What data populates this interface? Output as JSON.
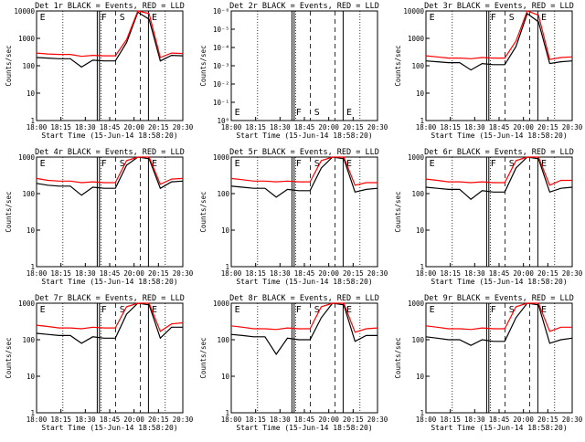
{
  "chart_data": [
    {
      "type": "line",
      "title": "Det 1r BLACK = Events, RED = LLD",
      "ylabel": "Counts/sec",
      "xlabel": "Start Time (15-Jun-14 18:58:20)",
      "x_ticks": [
        "18:00",
        "18:15",
        "18:30",
        "18:45",
        "20:00",
        "20:15",
        "20:30"
      ],
      "y_ticks": [
        "1",
        "10",
        "100",
        "1000",
        "10000"
      ],
      "y_scale": "log",
      "ylim": [
        1,
        10000
      ],
      "markers": [
        "E",
        "F",
        "S",
        "E"
      ],
      "series": [
        {
          "color": "#000000",
          "values": [
            200,
            190,
            180,
            180,
            90,
            160,
            150,
            150,
            700,
            9000,
            5000,
            150,
            240,
            230
          ]
        },
        {
          "color": "#ff0000",
          "values": [
            290,
            270,
            260,
            260,
            220,
            240,
            230,
            230,
            900,
            10000,
            8000,
            200,
            290,
            280
          ]
        }
      ]
    },
    {
      "type": "line",
      "title": "Det 2r BLACK = Events, RED = LLD",
      "ylabel": "Counts/sec",
      "xlabel": "Start Time (15-Jun-14 18:58:20)",
      "x_ticks": [
        "18:00",
        "18:15",
        "18:30",
        "18:45",
        "20:00",
        "20:15",
        "20:30"
      ],
      "y_ticks": [
        "10⁰",
        "10⁻¹",
        "10⁻²",
        "10⁻³",
        "10⁻⁴",
        "10⁻⁵",
        "10⁻⁶"
      ],
      "y_scale": "log",
      "markers": [
        "E",
        "F",
        "S",
        "E"
      ],
      "series": []
    },
    {
      "type": "line",
      "title": "Det 3r BLACK = Events, RED = LLD",
      "ylabel": "Counts/sec",
      "xlabel": "Start Time (15-Jun-14 18:58:20)",
      "x_ticks": [
        "18:00",
        "18:15",
        "18:30",
        "18:45",
        "20:00",
        "20:15",
        "20:30"
      ],
      "y_ticks": [
        "1",
        "10",
        "100",
        "1000",
        "10000"
      ],
      "y_scale": "log",
      "ylim": [
        1,
        10000
      ],
      "markers": [
        "E",
        "F",
        "S",
        "E"
      ],
      "series": [
        {
          "color": "#000000",
          "values": [
            150,
            140,
            130,
            130,
            70,
            120,
            110,
            110,
            500,
            8000,
            4000,
            120,
            140,
            150
          ]
        },
        {
          "color": "#ff0000",
          "values": [
            230,
            210,
            190,
            190,
            180,
            200,
            190,
            190,
            800,
            10000,
            7000,
            170,
            200,
            210
          ]
        }
      ]
    },
    {
      "type": "line",
      "title": "Det 4r BLACK = Events, RED = LLD",
      "ylabel": "Counts/sec",
      "xlabel": "Start Time (15-Jun-14 18:58:20)",
      "x_ticks": [
        "18:00",
        "18:15",
        "18:30",
        "18:45",
        "20:00",
        "20:15",
        "20:30"
      ],
      "y_ticks": [
        "1",
        "10",
        "100",
        "1000"
      ],
      "y_scale": "log",
      "ylim": [
        1,
        1000
      ],
      "markers": [
        "E",
        "F",
        "S",
        "E"
      ],
      "series": [
        {
          "color": "#000000",
          "values": [
            190,
            170,
            160,
            160,
            90,
            150,
            140,
            140,
            600,
            1000,
            900,
            140,
            210,
            220
          ]
        },
        {
          "color": "#ff0000",
          "values": [
            260,
            230,
            220,
            220,
            200,
            210,
            200,
            200,
            800,
            1000,
            1000,
            180,
            250,
            260
          ]
        }
      ]
    },
    {
      "type": "line",
      "title": "Det 5r BLACK = Events, RED = LLD",
      "ylabel": "Counts/sec",
      "xlabel": "Start Time (15-Jun-14 18:58:20)",
      "x_ticks": [
        "18:00",
        "18:15",
        "18:30",
        "18:45",
        "20:00",
        "20:15",
        "20:30"
      ],
      "y_ticks": [
        "1",
        "10",
        "100",
        "1000"
      ],
      "y_scale": "log",
      "ylim": [
        1,
        1000
      ],
      "markers": [
        "E",
        "F",
        "S",
        "E"
      ],
      "series": [
        {
          "color": "#000000",
          "values": [
            160,
            150,
            140,
            140,
            80,
            130,
            120,
            120,
            500,
            1000,
            900,
            110,
            130,
            140
          ]
        },
        {
          "color": "#ff0000",
          "values": [
            260,
            240,
            220,
            220,
            210,
            220,
            210,
            210,
            800,
            1000,
            1000,
            170,
            200,
            200
          ]
        }
      ]
    },
    {
      "type": "line",
      "title": "Det 6r BLACK = Events, RED = LLD",
      "ylabel": "Counts/sec",
      "xlabel": "Start Time (15-Jun-14 18:58:20)",
      "x_ticks": [
        "18:00",
        "18:15",
        "18:30",
        "18:45",
        "20:00",
        "20:15",
        "20:30"
      ],
      "y_ticks": [
        "1",
        "10",
        "100",
        "1000"
      ],
      "y_scale": "log",
      "ylim": [
        1,
        1000
      ],
      "markers": [
        "E",
        "F",
        "S",
        "E"
      ],
      "series": [
        {
          "color": "#000000",
          "values": [
            150,
            140,
            130,
            130,
            70,
            120,
            110,
            110,
            500,
            1000,
            900,
            110,
            140,
            150
          ]
        },
        {
          "color": "#ff0000",
          "values": [
            250,
            230,
            210,
            210,
            200,
            210,
            200,
            200,
            800,
            1000,
            1000,
            170,
            230,
            230
          ]
        }
      ]
    },
    {
      "type": "line",
      "title": "Det 7r BLACK = Events, RED = LLD",
      "ylabel": "Counts/sec",
      "xlabel": "Start Time (15-Jun-14 18:58:20)",
      "x_ticks": [
        "18:00",
        "18:15",
        "18:30",
        "18:45",
        "20:00",
        "20:15",
        "20:30"
      ],
      "y_ticks": [
        "1",
        "10",
        "100",
        "1000"
      ],
      "y_scale": "log",
      "ylim": [
        1,
        1000
      ],
      "markers": [
        "E",
        "F",
        "S",
        "E"
      ],
      "series": [
        {
          "color": "#000000",
          "values": [
            150,
            140,
            130,
            130,
            80,
            120,
            110,
            110,
            500,
            1000,
            900,
            110,
            220,
            220
          ]
        },
        {
          "color": "#ff0000",
          "values": [
            250,
            230,
            210,
            210,
            200,
            220,
            210,
            210,
            800,
            1000,
            1000,
            170,
            270,
            290
          ]
        }
      ]
    },
    {
      "type": "line",
      "title": "Det 8r BLACK = Events, RED = LLD",
      "ylabel": "Counts/sec",
      "xlabel": "Start Time (15-Jun-14 18:58:20)",
      "x_ticks": [
        "18:00",
        "18:15",
        "18:30",
        "18:45",
        "20:00",
        "20:15",
        "20:30"
      ],
      "y_ticks": [
        "1",
        "10",
        "100",
        "1000"
      ],
      "y_scale": "log",
      "ylim": [
        1,
        1000
      ],
      "markers": [
        "E",
        "F",
        "S",
        "E"
      ],
      "series": [
        {
          "color": "#000000",
          "values": [
            140,
            130,
            120,
            120,
            40,
            110,
            100,
            100,
            400,
            1000,
            900,
            90,
            130,
            130
          ]
        },
        {
          "color": "#ff0000",
          "values": [
            240,
            220,
            200,
            200,
            190,
            210,
            200,
            200,
            800,
            1000,
            1000,
            160,
            200,
            210
          ]
        }
      ]
    },
    {
      "type": "line",
      "title": "Det 9r BLACK = Events, RED = LLD",
      "ylabel": "Counts/sec",
      "xlabel": "Start Time (15-Jun-14 18:58:20)",
      "x_ticks": [
        "18:00",
        "18:15",
        "18:30",
        "18:45",
        "20:00",
        "20:15",
        "20:30"
      ],
      "y_ticks": [
        "1",
        "10",
        "100",
        "1000"
      ],
      "y_scale": "log",
      "ylim": [
        1,
        1000
      ],
      "markers": [
        "E",
        "F",
        "S",
        "E"
      ],
      "series": [
        {
          "color": "#000000",
          "values": [
            120,
            110,
            100,
            100,
            70,
            100,
            90,
            90,
            400,
            1000,
            900,
            80,
            100,
            110
          ]
        },
        {
          "color": "#ff0000",
          "values": [
            240,
            220,
            200,
            200,
            190,
            210,
            200,
            200,
            800,
            1000,
            1000,
            170,
            220,
            220
          ]
        }
      ]
    }
  ]
}
